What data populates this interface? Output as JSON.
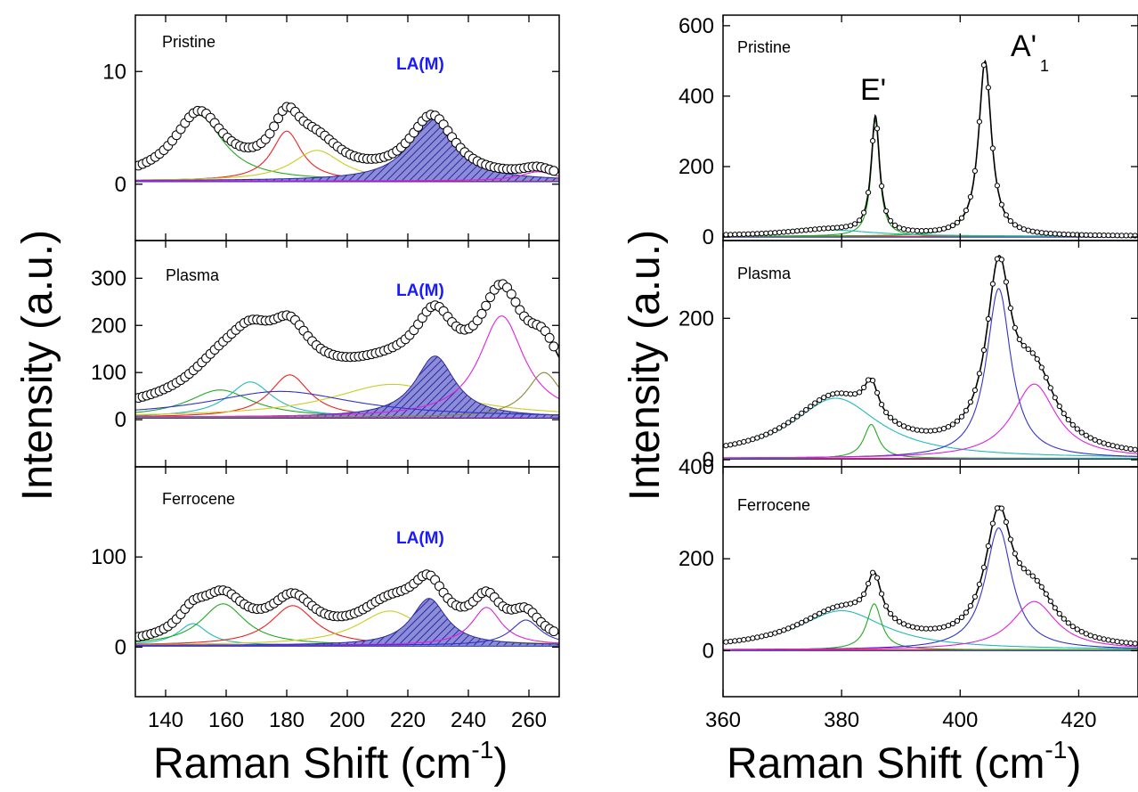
{
  "figure": {
    "ylabel": "Intensity (a.u.)",
    "xlabel_left": "Raman Shift (cm",
    "xlabel_right": "Raman Shift (cm",
    "xlabel_sup": "-1",
    "xlabel_close": ")"
  },
  "colors": {
    "frame": "#000000",
    "markers": "#000000",
    "fit": "#000000",
    "la_fill": "#8c8cd8",
    "la_hatch": "#2a2aa0",
    "la_label": "#1a1aff",
    "components": [
      "#22aa22",
      "#ee2222",
      "#cccc22",
      "#22bbbb",
      "#dd22dd",
      "#3333cc",
      "#888833",
      "#ee7700"
    ]
  },
  "chart_data": [
    {
      "type": "line",
      "panel": "left-top",
      "label": "Pristine",
      "annotation": "LA(M)",
      "xlim": [
        130,
        270
      ],
      "ylim": [
        -5,
        15
      ],
      "yticks": [
        0,
        10
      ],
      "xticks": [
        140,
        160,
        180,
        200,
        220,
        240,
        260
      ],
      "show_xticklabels": false,
      "baseline": 0.3,
      "peaks": [
        {
          "center": 151,
          "height": 5.8,
          "width": 20,
          "color": "#22aa22"
        },
        {
          "center": 180,
          "height": 4.4,
          "width": 12,
          "color": "#ee2222"
        },
        {
          "center": 190,
          "height": 2.7,
          "width": 20,
          "color": "#cccc22"
        },
        {
          "center": 228,
          "height": 5.5,
          "width": 18,
          "color": "#8c8cd8",
          "la": true
        },
        {
          "center": 263,
          "height": 0.8,
          "width": 14,
          "color": "#dd22dd"
        }
      ],
      "markers": {
        "x_start": 131,
        "x_end": 269,
        "step": 1.4
      }
    },
    {
      "type": "line",
      "panel": "left-middle",
      "label": "Plasma",
      "annotation": "LA(M)",
      "xlim": [
        130,
        270
      ],
      "ylim": [
        -100,
        380
      ],
      "yticks": [
        0,
        100,
        200,
        300
      ],
      "xticks": [
        140,
        160,
        180,
        200,
        220,
        240,
        260
      ],
      "show_xticklabels": false,
      "baseline": 5,
      "peaks": [
        {
          "center": 158,
          "height": 58,
          "width": 26,
          "color": "#22aa22"
        },
        {
          "center": 168,
          "height": 75,
          "width": 18,
          "color": "#22bbbb"
        },
        {
          "center": 181,
          "height": 90,
          "width": 16,
          "color": "#ee2222"
        },
        {
          "center": 215,
          "height": 70,
          "width": 50,
          "color": "#cccc22"
        },
        {
          "center": 229,
          "height": 130,
          "width": 16,
          "color": "#8c8cd8",
          "la": true
        },
        {
          "center": 251,
          "height": 215,
          "width": 18,
          "color": "#dd22dd"
        },
        {
          "center": 265,
          "height": 95,
          "width": 14,
          "color": "#888833"
        },
        {
          "center": 178,
          "height": 55,
          "width": 60,
          "color": "#3333cc"
        }
      ],
      "markers": {
        "x_start": 131,
        "x_end": 269,
        "step": 1.4
      }
    },
    {
      "type": "line",
      "panel": "left-bottom",
      "label": "Ferrocene",
      "annotation": "LA(M)",
      "xlim": [
        130,
        270
      ],
      "ylim": [
        -55,
        200
      ],
      "yticks": [
        0,
        100
      ],
      "xticks": [
        140,
        160,
        180,
        200,
        220,
        240,
        260
      ],
      "xticklabels": [
        "140",
        "160",
        "180",
        "200",
        "220",
        "240",
        "260"
      ],
      "show_xticklabels": true,
      "baseline": 2,
      "peaks": [
        {
          "center": 149,
          "height": 24,
          "width": 12,
          "color": "#22bbbb"
        },
        {
          "center": 159,
          "height": 46,
          "width": 18,
          "color": "#22aa22"
        },
        {
          "center": 182,
          "height": 44,
          "width": 18,
          "color": "#ee2222"
        },
        {
          "center": 214,
          "height": 38,
          "width": 26,
          "color": "#cccc22"
        },
        {
          "center": 227,
          "height": 52,
          "width": 14,
          "color": "#8c8cd8",
          "la": true
        },
        {
          "center": 246,
          "height": 42,
          "width": 12,
          "color": "#dd22dd"
        },
        {
          "center": 259,
          "height": 28,
          "width": 12,
          "color": "#3333cc"
        }
      ],
      "markers": {
        "x_start": 131,
        "x_end": 269,
        "step": 1.4
      }
    },
    {
      "type": "line",
      "panel": "right-top",
      "label": "Pristine",
      "annotations": [
        "E'",
        "A'",
        "1"
      ],
      "xlim": [
        360,
        430
      ],
      "ylim": [
        -10,
        630
      ],
      "yticks": [
        0,
        200,
        400,
        600
      ],
      "xticks": [
        360,
        380,
        400,
        420
      ],
      "show_xticklabels": false,
      "baseline": 2,
      "peaks": [
        {
          "center": 385.7,
          "height": 330,
          "width": 1.7,
          "color": "#22aa22"
        },
        {
          "center": 404.2,
          "height": 495,
          "width": 2.6,
          "color": "#22aa22"
        },
        {
          "center": 378,
          "height": 18,
          "width": 18,
          "color": "#22bbbb"
        }
      ],
      "markers": {
        "x_start": 360.5,
        "x_end": 429.5,
        "step": 0.75
      }
    },
    {
      "type": "line",
      "panel": "right-middle",
      "label": "Plasma",
      "xlim": [
        360,
        430
      ],
      "ylim": [
        -10,
        310
      ],
      "yticks": [
        0,
        200
      ],
      "xticks": [
        360,
        380,
        400,
        420
      ],
      "show_xticklabels": false,
      "baseline": 2,
      "peaks": [
        {
          "center": 379,
          "height": 85,
          "width": 18,
          "color": "#22bbbb"
        },
        {
          "center": 385,
          "height": 48,
          "width": 3,
          "color": "#22aa22"
        },
        {
          "center": 406.5,
          "height": 240,
          "width": 5,
          "color": "#3333cc"
        },
        {
          "center": 412.5,
          "height": 105,
          "width": 9,
          "color": "#dd22dd"
        }
      ],
      "markers": {
        "x_start": 360.5,
        "x_end": 429.5,
        "step": 0.75
      }
    },
    {
      "type": "line",
      "panel": "right-bottom",
      "label": "Ferrocene",
      "xlim": [
        360,
        430
      ],
      "ylim": [
        -100,
        400
      ],
      "yticks": [
        0,
        200,
        400
      ],
      "xticks": [
        360,
        380,
        400,
        420
      ],
      "xticklabels": [
        "360",
        "380",
        "400",
        "420"
      ],
      "show_xticklabels": true,
      "baseline": 2,
      "peaks": [
        {
          "center": 380,
          "height": 85,
          "width": 18,
          "color": "#22bbbb"
        },
        {
          "center": 385.5,
          "height": 100,
          "width": 3,
          "color": "#22aa22"
        },
        {
          "center": 406.5,
          "height": 265,
          "width": 5.5,
          "color": "#3333cc"
        },
        {
          "center": 412.5,
          "height": 105,
          "width": 9,
          "color": "#dd22dd"
        }
      ],
      "markers": {
        "x_start": 360.5,
        "x_end": 429.5,
        "step": 0.75
      }
    }
  ]
}
